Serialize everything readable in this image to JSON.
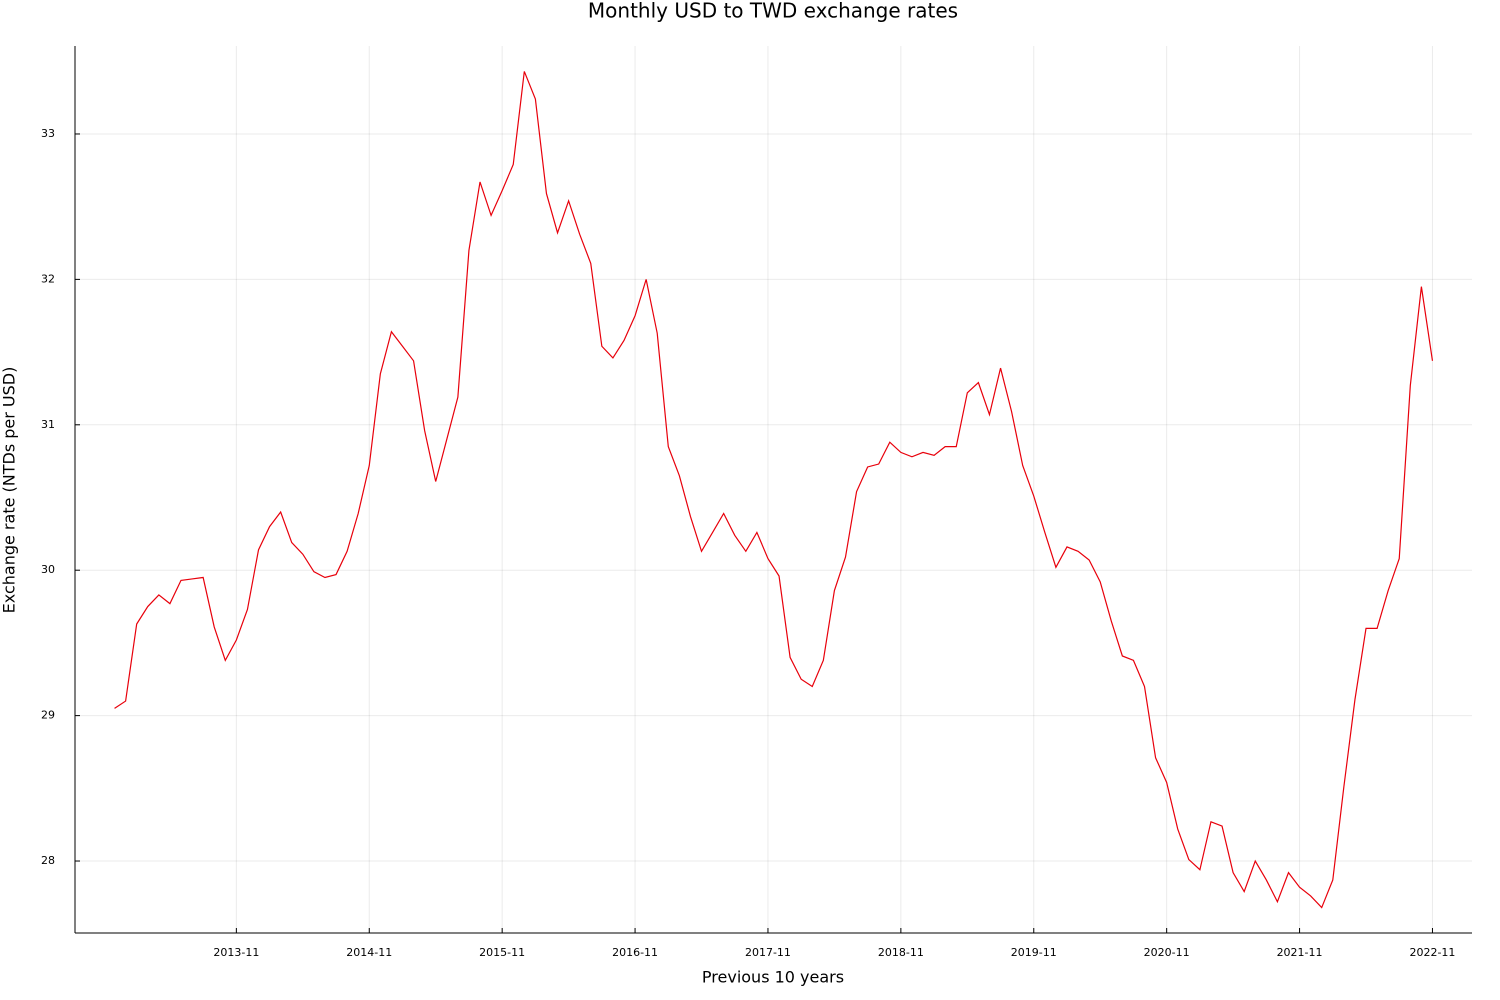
{
  "chart_data": {
    "type": "line",
    "title": "Monthly USD to TWD exchange rates",
    "x_label": "Previous 10 years",
    "y_label": "Exchange rate (NTDs per USD)",
    "x": [
      "2012-12",
      "2013-01",
      "2013-02",
      "2013-03",
      "2013-04",
      "2013-05",
      "2013-06",
      "2013-07",
      "2013-08",
      "2013-09",
      "2013-10",
      "2013-11",
      "2013-12",
      "2014-01",
      "2014-02",
      "2014-03",
      "2014-04",
      "2014-05",
      "2014-06",
      "2014-07",
      "2014-08",
      "2014-09",
      "2014-10",
      "2014-11",
      "2014-12",
      "2015-01",
      "2015-02",
      "2015-03",
      "2015-04",
      "2015-05",
      "2015-06",
      "2015-07",
      "2015-08",
      "2015-09",
      "2015-10",
      "2015-11",
      "2015-12",
      "2016-01",
      "2016-02",
      "2016-03",
      "2016-04",
      "2016-05",
      "2016-06",
      "2016-07",
      "2016-08",
      "2016-09",
      "2016-10",
      "2016-11",
      "2016-12",
      "2017-01",
      "2017-02",
      "2017-03",
      "2017-04",
      "2017-05",
      "2017-06",
      "2017-07",
      "2017-08",
      "2017-09",
      "2017-10",
      "2017-11",
      "2017-12",
      "2018-01",
      "2018-02",
      "2018-03",
      "2018-04",
      "2018-05",
      "2018-06",
      "2018-07",
      "2018-08",
      "2018-09",
      "2018-10",
      "2018-11",
      "2018-12",
      "2019-01",
      "2019-02",
      "2019-03",
      "2019-04",
      "2019-05",
      "2019-06",
      "2019-07",
      "2019-08",
      "2019-09",
      "2019-10",
      "2019-11",
      "2019-12",
      "2020-01",
      "2020-02",
      "2020-03",
      "2020-04",
      "2020-05",
      "2020-06",
      "2020-07",
      "2020-08",
      "2020-09",
      "2020-10",
      "2020-11",
      "2020-12",
      "2021-01",
      "2021-02",
      "2021-03",
      "2021-04",
      "2021-05",
      "2021-06",
      "2021-07",
      "2021-08",
      "2021-09",
      "2021-10",
      "2021-11",
      "2021-12",
      "2022-01",
      "2022-02",
      "2022-03",
      "2022-04",
      "2022-05",
      "2022-06",
      "2022-07",
      "2022-08",
      "2022-09",
      "2022-10",
      "2022-11"
    ],
    "series": [
      {
        "color": "#e8000b",
        "values": [
          29.05,
          29.1,
          29.63,
          29.75,
          29.83,
          29.77,
          29.93,
          29.94,
          29.95,
          29.61,
          29.38,
          29.52,
          29.73,
          30.14,
          30.3,
          30.4,
          30.19,
          30.11,
          29.99,
          29.95,
          29.97,
          30.13,
          30.39,
          30.72,
          31.35,
          31.64,
          31.54,
          31.44,
          30.96,
          30.61,
          30.9,
          31.19,
          32.2,
          32.67,
          32.44,
          32.61,
          32.79,
          33.43,
          33.24,
          32.59,
          32.32,
          32.54,
          32.31,
          32.11,
          31.54,
          31.46,
          31.58,
          31.75,
          32.0,
          31.63,
          30.85,
          30.65,
          30.37,
          30.13,
          30.26,
          30.39,
          30.24,
          30.13,
          30.26,
          30.08,
          29.96,
          29.4,
          29.25,
          29.2,
          29.38,
          29.86,
          30.09,
          30.54,
          30.71,
          30.73,
          30.88,
          30.81,
          30.78,
          30.81,
          30.79,
          30.85,
          30.85,
          31.22,
          31.29,
          31.07,
          31.39,
          31.09,
          30.72,
          30.51,
          30.26,
          30.02,
          30.16,
          30.13,
          30.07,
          29.92,
          29.65,
          29.41,
          29.38,
          29.2,
          28.71,
          28.54,
          28.22,
          28.01,
          27.94,
          28.27,
          28.24,
          27.92,
          27.79,
          28.0,
          27.87,
          27.72,
          27.92,
          27.82,
          27.76,
          27.68,
          27.87,
          28.51,
          29.11,
          29.6,
          29.6,
          29.86,
          30.08,
          31.27,
          31.95,
          31.44
        ]
      }
    ],
    "xticks": [
      "2013-11",
      "2014-11",
      "2015-11",
      "2016-11",
      "2017-11",
      "2018-11",
      "2019-11",
      "2020-11",
      "2021-11",
      "2022-11"
    ],
    "ylim": [
      27.505,
      33.605
    ],
    "yticks": [
      28,
      29,
      30,
      31,
      32,
      33
    ],
    "grid": true
  }
}
